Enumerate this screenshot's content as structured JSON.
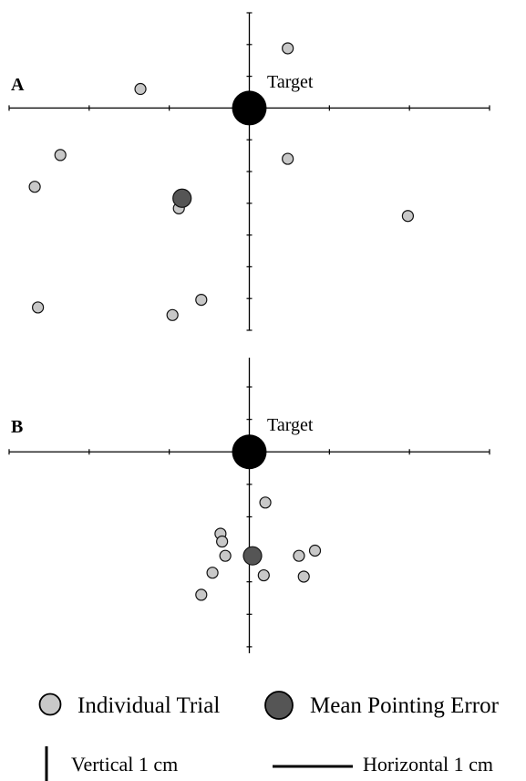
{
  "chart_data": [
    {
      "type": "scatter",
      "panel_label": "A",
      "target_label": "Target",
      "target": {
        "x": 0,
        "y": 0
      },
      "xlim": [
        -3,
        3
      ],
      "ylim": [
        -7,
        3
      ],
      "grid": false,
      "series": [
        {
          "name": "Individual Trial",
          "color": "#c8c8c8",
          "points": [
            {
              "x": 0.48,
              "y": 1.88
            },
            {
              "x": -1.36,
              "y": 0.6
            },
            {
              "x": -2.36,
              "y": -1.48
            },
            {
              "x": -2.68,
              "y": -2.48
            },
            {
              "x": -0.88,
              "y": -3.16
            },
            {
              "x": 0.48,
              "y": -1.6
            },
            {
              "x": 1.98,
              "y": -3.4
            },
            {
              "x": -2.64,
              "y": -6.28
            },
            {
              "x": -0.96,
              "y": -6.52
            },
            {
              "x": -0.6,
              "y": -6.04
            }
          ]
        },
        {
          "name": "Mean Pointing Error",
          "color": "#555555",
          "points": [
            {
              "x": -0.84,
              "y": -2.84
            }
          ]
        }
      ]
    },
    {
      "type": "scatter",
      "panel_label": "B",
      "target_label": "Target",
      "target": {
        "x": 0,
        "y": 0
      },
      "xlim": [
        -3,
        3
      ],
      "ylim": [
        -6.2,
        2.9
      ],
      "grid": false,
      "series": [
        {
          "name": "Individual Trial",
          "color": "#c8c8c8",
          "points": [
            {
              "x": 0.2,
              "y": -1.56
            },
            {
              "x": -0.36,
              "y": -2.52
            },
            {
              "x": -0.34,
              "y": -2.76
            },
            {
              "x": -0.3,
              "y": -3.2
            },
            {
              "x": 0.62,
              "y": -3.2
            },
            {
              "x": 0.82,
              "y": -3.04
            },
            {
              "x": -0.46,
              "y": -3.72
            },
            {
              "x": 0.18,
              "y": -3.8
            },
            {
              "x": 0.68,
              "y": -3.84
            },
            {
              "x": -0.6,
              "y": -4.4
            }
          ]
        },
        {
          "name": "Mean Pointing Error",
          "color": "#555555",
          "points": [
            {
              "x": 0.04,
              "y": -3.2
            }
          ]
        }
      ]
    }
  ],
  "legend": {
    "items": [
      {
        "label": "Individual Trial",
        "color": "#c8c8c8"
      },
      {
        "label": "Mean Pointing Error",
        "color": "#555555"
      }
    ]
  },
  "scale_bars": {
    "vertical_label": "Vertical 1 cm",
    "horizontal_label": "Horizontal 1 cm"
  }
}
